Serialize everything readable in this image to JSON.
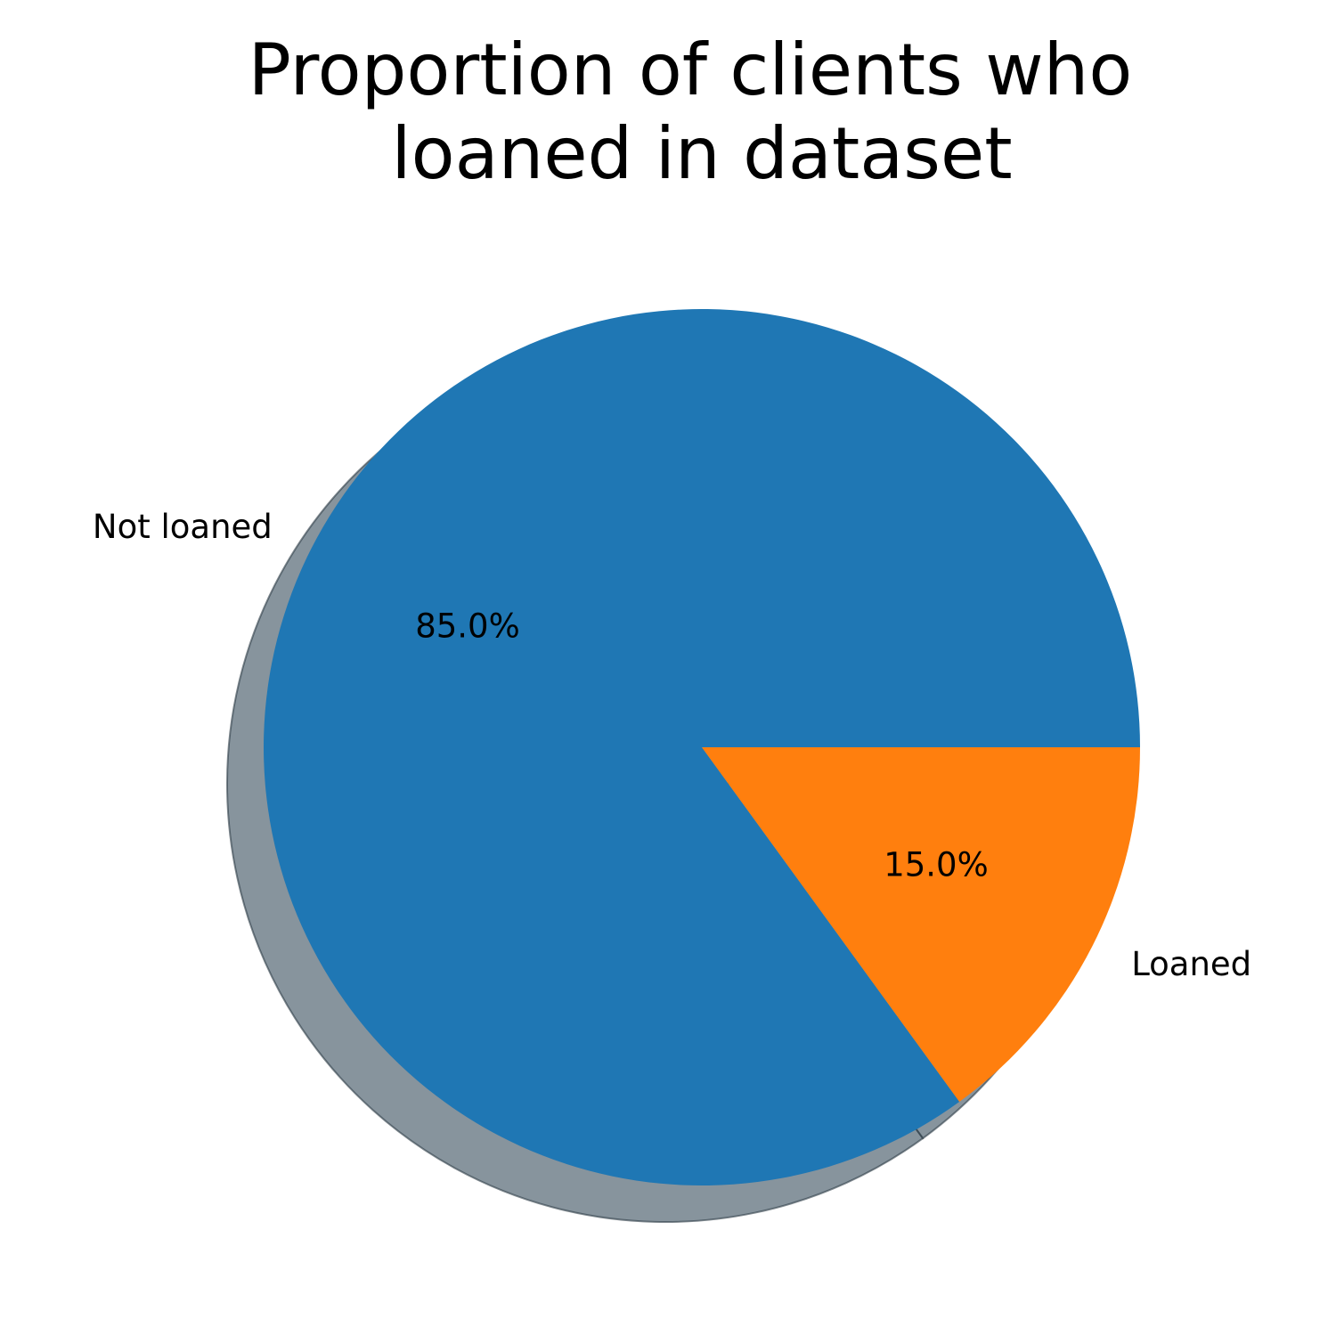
{
  "chart_data": {
    "type": "pie",
    "title": "Proportion of clients who loaned in dataset",
    "title_lines": [
      "Proportion of clients who",
      "loaned in dataset"
    ],
    "categories": [
      "Not loaned",
      "Loaned"
    ],
    "values": [
      85.0,
      15.0
    ],
    "percent_labels": [
      "85.0%",
      "15.0%"
    ],
    "colors": [
      "#1f77b4",
      "#ff7f0e"
    ],
    "shadow": true,
    "start_angle_deg": 0,
    "direction": "counterclockwise"
  }
}
